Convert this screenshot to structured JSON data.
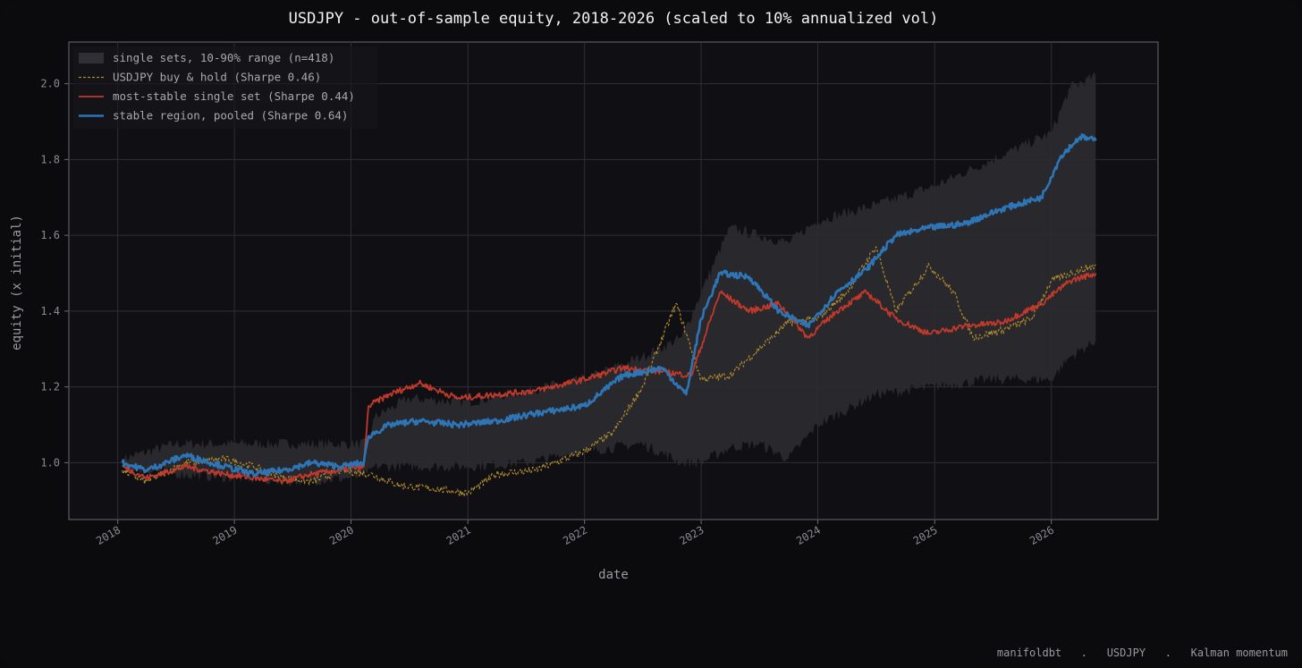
{
  "chart_data": {
    "type": "line",
    "title": "USDJPY  -  out-of-sample equity, 2018-2026  (scaled to 10% annualized vol)",
    "xlabel": "date",
    "ylabel": "equity (x initial)",
    "x_ticks": [
      "2018",
      "2019",
      "2020",
      "2021",
      "2022",
      "2023",
      "2024",
      "2025",
      "2026"
    ],
    "y_ticks": [
      "1.0",
      "1.2",
      "1.4",
      "1.6",
      "1.8",
      "2.0"
    ],
    "xlim": [
      "2017-08-01",
      "2026-12-01"
    ],
    "ylim": [
      0.85,
      2.11
    ],
    "grid": true,
    "legend_position": "top-left",
    "series": [
      {
        "name": "single sets, 10-90% range (n=418)",
        "kind": "band",
        "color": "#2b2b30",
        "x": [
          "2018-01-15",
          "2018-07-01",
          "2019-01-01",
          "2019-07-01",
          "2020-01-01",
          "2020-02-20",
          "2020-03-15",
          "2020-07-01",
          "2021-01-01",
          "2021-07-01",
          "2022-01-01",
          "2022-07-01",
          "2022-11-01",
          "2023-01-01",
          "2023-04-01",
          "2023-07-01",
          "2023-10-01",
          "2024-01-01",
          "2024-07-01",
          "2025-01-01",
          "2025-07-01",
          "2026-01-01",
          "2026-03-01",
          "2026-05-20"
        ],
        "low": [
          0.99,
          0.97,
          0.96,
          0.95,
          0.96,
          0.97,
          0.99,
          0.99,
          0.99,
          1.0,
          1.03,
          1.05,
          1.0,
          1.0,
          1.04,
          1.05,
          1.01,
          1.1,
          1.18,
          1.2,
          1.22,
          1.22,
          1.28,
          1.32
        ],
        "high": [
          1.01,
          1.05,
          1.05,
          1.05,
          1.05,
          1.05,
          1.12,
          1.17,
          1.16,
          1.19,
          1.22,
          1.28,
          1.33,
          1.45,
          1.62,
          1.6,
          1.58,
          1.64,
          1.68,
          1.73,
          1.8,
          1.87,
          1.99,
          2.02
        ]
      },
      {
        "name": "USDJPY buy & hold (Sharpe 0.46)",
        "kind": "dashed",
        "color": "#b08a2e",
        "x": [
          "2018-01-15",
          "2018-04-01",
          "2018-08-01",
          "2018-12-01",
          "2019-03-01",
          "2019-06-01",
          "2019-09-01",
          "2019-12-01",
          "2020-03-01",
          "2020-06-01",
          "2020-10-01",
          "2021-01-01",
          "2021-04-01",
          "2021-08-01",
          "2022-01-01",
          "2022-04-01",
          "2022-07-01",
          "2022-10-15",
          "2023-01-01",
          "2023-04-01",
          "2023-07-01",
          "2023-10-01",
          "2024-01-01",
          "2024-04-01",
          "2024-07-01",
          "2024-09-01",
          "2024-12-15",
          "2025-03-01",
          "2025-05-01",
          "2025-08-01",
          "2025-11-01",
          "2026-01-01",
          "2026-03-01",
          "2026-05-20"
        ],
        "y": [
          0.98,
          0.95,
          1.0,
          1.01,
          0.99,
          0.96,
          0.95,
          0.98,
          0.97,
          0.94,
          0.93,
          0.92,
          0.97,
          0.98,
          1.03,
          1.08,
          1.2,
          1.42,
          1.22,
          1.23,
          1.3,
          1.37,
          1.38,
          1.45,
          1.57,
          1.4,
          1.52,
          1.45,
          1.33,
          1.35,
          1.38,
          1.48,
          1.5,
          1.52
        ]
      },
      {
        "name": "most-stable single set (Sharpe 0.44)",
        "kind": "line",
        "color": "#c0392b",
        "x": [
          "2018-01-15",
          "2018-04-01",
          "2018-08-01",
          "2018-12-01",
          "2019-03-01",
          "2019-06-01",
          "2019-09-01",
          "2019-12-01",
          "2020-02-10",
          "2020-02-25",
          "2020-05-01",
          "2020-08-01",
          "2020-12-01",
          "2021-04-01",
          "2021-08-01",
          "2022-01-01",
          "2022-05-01",
          "2022-09-01",
          "2022-12-01",
          "2023-03-01",
          "2023-06-01",
          "2023-09-01",
          "2023-12-01",
          "2024-03-01",
          "2024-06-01",
          "2024-09-01",
          "2024-12-15",
          "2025-04-01",
          "2025-08-01",
          "2025-12-01",
          "2026-03-01",
          "2026-05-20"
        ],
        "y": [
          0.99,
          0.96,
          0.99,
          0.97,
          0.96,
          0.95,
          0.97,
          0.98,
          0.99,
          1.15,
          1.18,
          1.21,
          1.17,
          1.18,
          1.19,
          1.22,
          1.25,
          1.24,
          1.23,
          1.45,
          1.4,
          1.42,
          1.33,
          1.4,
          1.45,
          1.38,
          1.34,
          1.36,
          1.37,
          1.42,
          1.48,
          1.5
        ]
      },
      {
        "name": "stable region, pooled (Sharpe 0.64)",
        "kind": "line-thick",
        "color": "#2e75b6",
        "x": [
          "2018-01-15",
          "2018-04-01",
          "2018-08-01",
          "2018-12-01",
          "2019-03-01",
          "2019-06-01",
          "2019-09-01",
          "2019-12-01",
          "2020-02-10",
          "2020-02-25",
          "2020-05-01",
          "2020-08-01",
          "2020-12-01",
          "2021-04-01",
          "2021-08-01",
          "2022-01-01",
          "2022-05-01",
          "2022-09-01",
          "2022-11-15",
          "2023-01-01",
          "2023-03-01",
          "2023-06-01",
          "2023-09-01",
          "2023-12-01",
          "2024-03-01",
          "2024-06-01",
          "2024-09-01",
          "2024-12-15",
          "2025-04-01",
          "2025-08-01",
          "2025-12-01",
          "2026-02-01",
          "2026-04-01",
          "2026-05-20"
        ],
        "y": [
          1.0,
          0.98,
          1.02,
          0.99,
          0.97,
          0.98,
          1.0,
          0.99,
          1.0,
          1.07,
          1.1,
          1.11,
          1.1,
          1.11,
          1.13,
          1.15,
          1.23,
          1.25,
          1.18,
          1.38,
          1.5,
          1.49,
          1.4,
          1.36,
          1.45,
          1.51,
          1.6,
          1.62,
          1.63,
          1.67,
          1.7,
          1.81,
          1.86,
          1.85
        ]
      }
    ]
  },
  "footer": "manifoldbt   .   USDJPY   .   Kalman momentum"
}
